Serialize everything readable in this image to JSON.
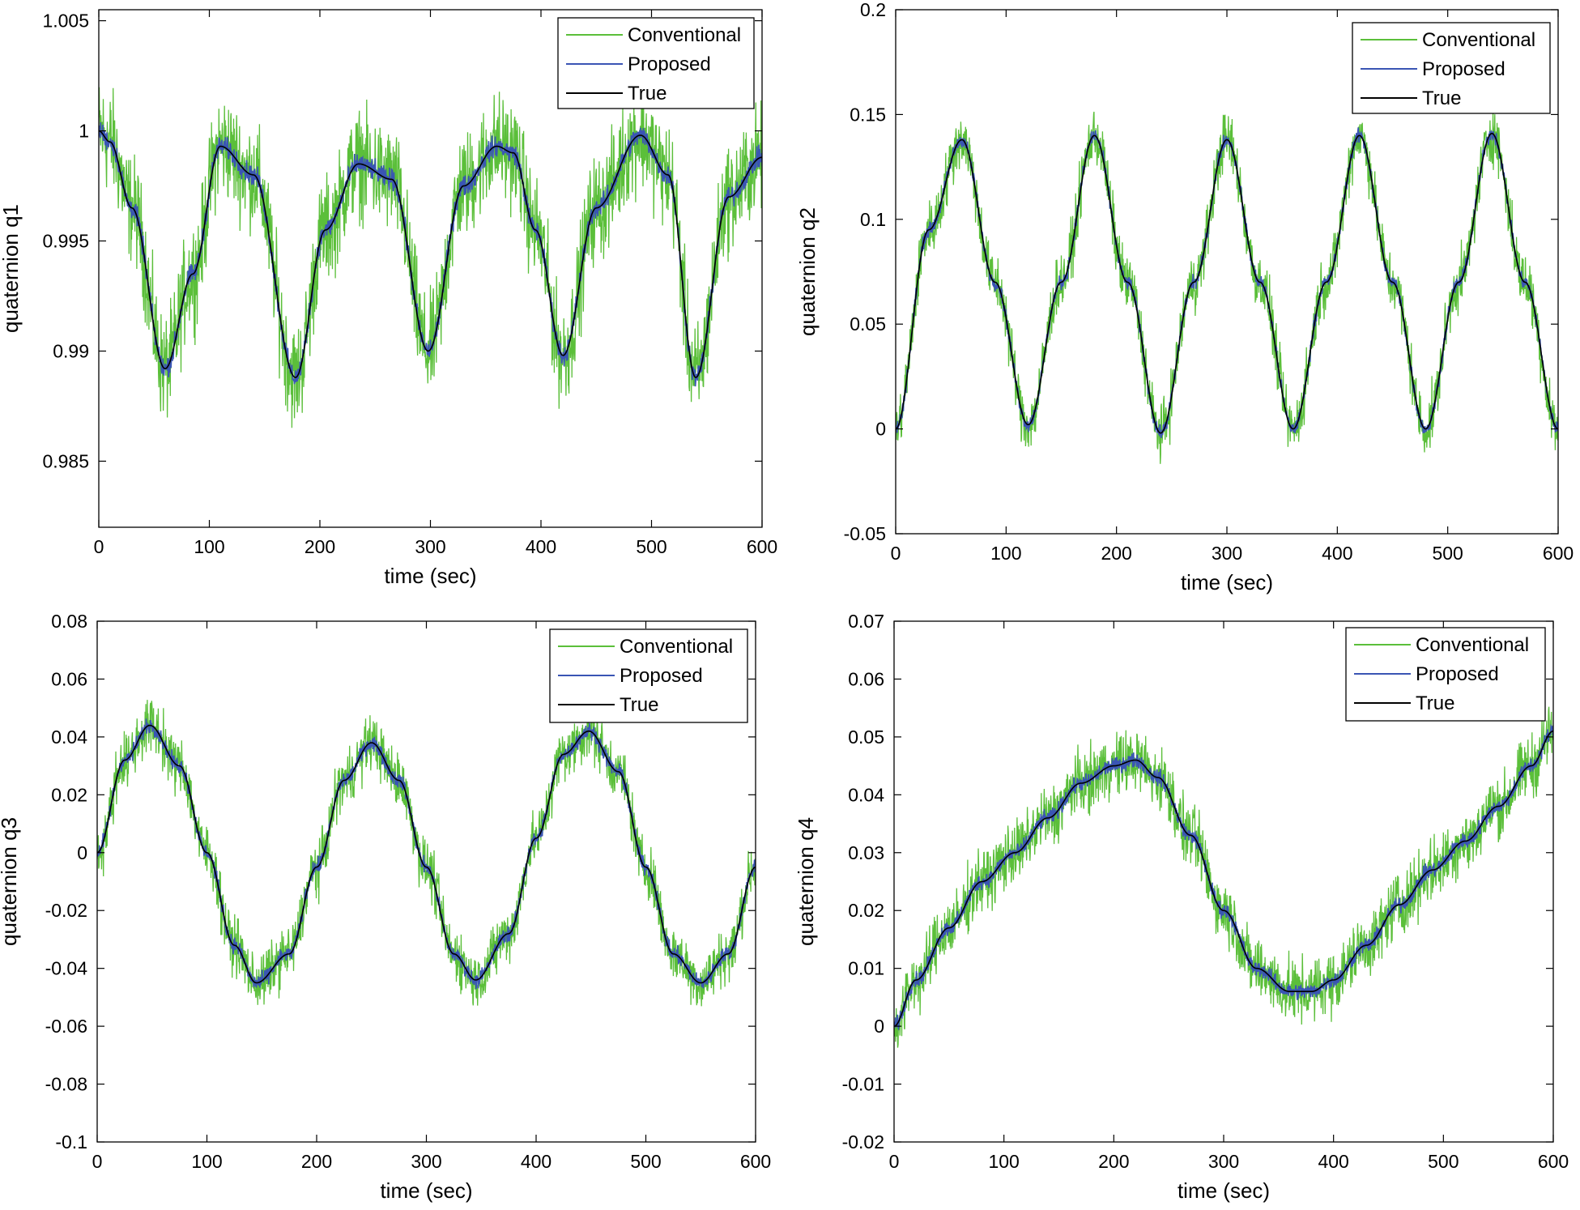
{
  "chart_data": [
    {
      "type": "line",
      "ylabel": "quaternion q1",
      "xlabel": "time (sec)",
      "xlim": [
        0,
        600
      ],
      "ylim": [
        0.982,
        1.0055
      ],
      "xticks": [
        0,
        100,
        200,
        300,
        400,
        500,
        600
      ],
      "xtick_labels": [
        "0",
        "100",
        "200",
        "300",
        "400",
        "500",
        "600"
      ],
      "yticks": [
        0.985,
        0.99,
        0.995,
        1,
        1.005
      ],
      "ytick_labels": [
        "0.985",
        "0.99",
        "0.995",
        "1",
        "1.005"
      ],
      "legend": {
        "position": "top-right",
        "entries": [
          "Conventional",
          "Proposed",
          "True"
        ]
      },
      "series": [
        {
          "name": "Conventional",
          "color": "#5bbf3a",
          "noise_amplitude": 0.0035,
          "note": "noisy estimate around True"
        },
        {
          "name": "Proposed",
          "color": "#3a55b4",
          "noise_amplitude": 0.0007,
          "note": "low-noise estimate around True"
        },
        {
          "name": "True",
          "color": "#000000",
          "x": [
            0,
            10,
            30,
            60,
            85,
            110,
            140,
            178,
            205,
            235,
            265,
            298,
            330,
            360,
            375,
            395,
            420,
            450,
            490,
            515,
            540,
            570,
            600
          ],
          "values": [
            1.0,
            0.9995,
            0.9965,
            0.9892,
            0.9935,
            0.9993,
            0.998,
            0.9888,
            0.9955,
            0.9985,
            0.9978,
            0.99,
            0.9975,
            0.9993,
            0.999,
            0.9955,
            0.9898,
            0.9965,
            0.9998,
            0.998,
            0.9888,
            0.997,
            0.9988
          ]
        }
      ]
    },
    {
      "type": "line",
      "ylabel": "quaternion q2",
      "xlabel": "time (sec)",
      "xlim": [
        0,
        600
      ],
      "ylim": [
        -0.05,
        0.2
      ],
      "xticks": [
        0,
        100,
        200,
        300,
        400,
        500,
        600
      ],
      "xtick_labels": [
        "0",
        "100",
        "200",
        "300",
        "400",
        "500",
        "600"
      ],
      "yticks": [
        -0.05,
        0,
        0.05,
        0.1,
        0.15,
        0.2
      ],
      "ytick_labels": [
        "-0.05",
        "0",
        "0.05",
        "0.1",
        "0.15",
        "0.2"
      ],
      "legend": {
        "position": "top-right",
        "entries": [
          "Conventional",
          "Proposed",
          "True"
        ]
      },
      "series": [
        {
          "name": "Conventional",
          "color": "#5bbf3a",
          "noise_amplitude": 0.02,
          "note": "noisy estimate around True"
        },
        {
          "name": "Proposed",
          "color": "#3a55b4",
          "noise_amplitude": 0.005,
          "note": "low-noise estimate around True"
        },
        {
          "name": "True",
          "color": "#000000",
          "x": [
            0,
            30,
            60,
            90,
            120,
            150,
            180,
            210,
            240,
            270,
            300,
            330,
            360,
            390,
            420,
            450,
            480,
            510,
            540,
            570,
            600
          ],
          "values": [
            0.0,
            0.095,
            0.138,
            0.07,
            0.002,
            0.07,
            0.14,
            0.07,
            -0.002,
            0.07,
            0.138,
            0.07,
            0.0,
            0.07,
            0.14,
            0.07,
            0.0,
            0.07,
            0.141,
            0.07,
            0.0
          ]
        }
      ]
    },
    {
      "type": "line",
      "ylabel": "quaternion q3",
      "xlabel": "time (sec)",
      "xlim": [
        0,
        600
      ],
      "ylim": [
        -0.1,
        0.08
      ],
      "xticks": [
        0,
        100,
        200,
        300,
        400,
        500,
        600
      ],
      "xtick_labels": [
        "0",
        "100",
        "200",
        "300",
        "400",
        "500",
        "600"
      ],
      "yticks": [
        -0.1,
        -0.08,
        -0.06,
        -0.04,
        -0.02,
        0,
        0.02,
        0.04,
        0.06,
        0.08
      ],
      "ytick_labels": [
        "-0.1",
        "-0.08",
        "-0.06",
        "-0.04",
        "-0.02",
        "0",
        "0.02",
        "0.04",
        "0.06",
        "0.08"
      ],
      "legend": {
        "position": "top-right",
        "entries": [
          "Conventional",
          "Proposed",
          "True"
        ]
      },
      "series": [
        {
          "name": "Conventional",
          "color": "#5bbf3a",
          "noise_amplitude": 0.014,
          "note": "noisy estimate around True"
        },
        {
          "name": "Proposed",
          "color": "#3a55b4",
          "noise_amplitude": 0.004,
          "note": "low-noise estimate around True"
        },
        {
          "name": "True",
          "color": "#000000",
          "x": [
            0,
            25,
            48,
            75,
            100,
            125,
            145,
            175,
            200,
            225,
            250,
            275,
            300,
            325,
            345,
            375,
            400,
            425,
            448,
            475,
            500,
            525,
            550,
            575,
            600
          ],
          "values": [
            0.0,
            0.032,
            0.044,
            0.03,
            0.0,
            -0.032,
            -0.045,
            -0.035,
            -0.005,
            0.025,
            0.038,
            0.025,
            -0.005,
            -0.035,
            -0.044,
            -0.028,
            0.005,
            0.034,
            0.042,
            0.028,
            -0.005,
            -0.035,
            -0.045,
            -0.035,
            -0.005
          ]
        }
      ]
    },
    {
      "type": "line",
      "ylabel": "quaternion q4",
      "xlabel": "time (sec)",
      "xlim": [
        0,
        600
      ],
      "ylim": [
        -0.02,
        0.07
      ],
      "xticks": [
        0,
        100,
        200,
        300,
        400,
        500,
        600
      ],
      "xtick_labels": [
        "0",
        "100",
        "200",
        "300",
        "400",
        "500",
        "600"
      ],
      "yticks": [
        -0.02,
        -0.01,
        0,
        0.01,
        0.02,
        0.03,
        0.04,
        0.05,
        0.06,
        0.07
      ],
      "ytick_labels": [
        "-0.02",
        "-0.01",
        "0",
        "0.01",
        "0.02",
        "0.03",
        "0.04",
        "0.05",
        "0.06",
        "0.07"
      ],
      "legend": {
        "position": "top-right",
        "entries": [
          "Conventional",
          "Proposed",
          "True"
        ]
      },
      "series": [
        {
          "name": "Conventional",
          "color": "#5bbf3a",
          "noise_amplitude": 0.008,
          "note": "noisy estimate around True"
        },
        {
          "name": "Proposed",
          "color": "#3a55b4",
          "noise_amplitude": 0.002,
          "note": "low-noise estimate around True"
        },
        {
          "name": "True",
          "color": "#000000",
          "x": [
            0,
            20,
            50,
            80,
            110,
            140,
            170,
            200,
            220,
            240,
            270,
            300,
            330,
            360,
            380,
            400,
            430,
            460,
            490,
            520,
            550,
            580,
            600
          ],
          "values": [
            0.0,
            0.008,
            0.017,
            0.025,
            0.03,
            0.036,
            0.042,
            0.045,
            0.046,
            0.043,
            0.033,
            0.02,
            0.01,
            0.006,
            0.006,
            0.008,
            0.014,
            0.021,
            0.027,
            0.032,
            0.038,
            0.045,
            0.051
          ]
        }
      ]
    }
  ]
}
